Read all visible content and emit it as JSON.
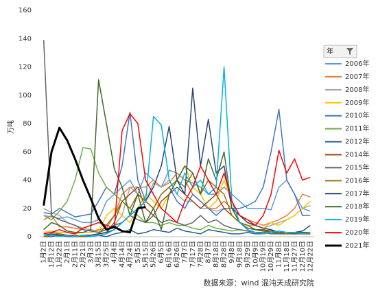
{
  "chart_data": {
    "type": "line",
    "y_label": "万吨",
    "source": "数据来源：wind 混沌天成研究院",
    "legend_title": "年",
    "legend_position": "right",
    "ylim": [
      0,
      160
    ],
    "yticks": [
      0,
      20,
      40,
      60,
      80,
      100,
      120,
      140,
      160
    ],
    "grid": false,
    "categories": [
      "1月2日",
      "1月12日",
      "1月22日",
      "2月1日",
      "2月11日",
      "2月21日",
      "3月3日",
      "3月15日",
      "3月25日",
      "4月4日",
      "4月14日",
      "4月24日",
      "5月5日",
      "5月15日",
      "5月26日",
      "6月5日",
      "6月16日",
      "6月26日",
      "7月7日",
      "7月17日",
      "7月28日",
      "8月7日",
      "8月18日",
      "8月28日",
      "9月8日",
      "9月18日",
      "9月29日",
      "10月9日",
      "10月19日",
      "10月29日",
      "11月8日",
      "11月18日",
      "11月27日",
      "12月10日",
      "12月22日"
    ],
    "series": [
      {
        "name": "2006年",
        "color": "#5b9bd5",
        "values": [
          15,
          14,
          13,
          14,
          12,
          10,
          10,
          12,
          25,
          30,
          35,
          40,
          30,
          45,
          40,
          35,
          47,
          45,
          40,
          38,
          35,
          30,
          30,
          35,
          30,
          25,
          20,
          20,
          20,
          19,
          35,
          40,
          30,
          20,
          18
        ]
      },
      {
        "name": "2007年",
        "color": "#ed7d31",
        "values": [
          12,
          15,
          7,
          7,
          6,
          5,
          4,
          5,
          6,
          15,
          30,
          35,
          35,
          35,
          40,
          35,
          38,
          45,
          40,
          30,
          25,
          20,
          20,
          25,
          20,
          15,
          12,
          10,
          8,
          10,
          12,
          15,
          20,
          30,
          28
        ]
      },
      {
        "name": "2008年",
        "color": "#a5a5a5",
        "values": [
          20,
          17,
          15,
          10,
          8,
          6,
          5,
          4,
          5,
          8,
          15,
          35,
          30,
          25,
          38,
          35,
          40,
          30,
          25,
          25,
          20,
          20,
          18,
          20,
          15,
          10,
          8,
          8,
          6,
          8,
          10,
          12,
          15,
          20,
          22
        ]
      },
      {
        "name": "2009年",
        "color": "#ffc000",
        "values": [
          3,
          4,
          3,
          3,
          2,
          3,
          3,
          4,
          15,
          20,
          15,
          10,
          20,
          30,
          25,
          20,
          30,
          40,
          50,
          35,
          30,
          20,
          25,
          40,
          25,
          15,
          10,
          8,
          6,
          10,
          8,
          12,
          15,
          20,
          25
        ]
      },
      {
        "name": "2010年",
        "color": "#4472c4",
        "values": [
          17,
          16,
          20,
          17,
          14,
          15,
          16,
          25,
          35,
          30,
          50,
          88,
          40,
          25,
          20,
          30,
          35,
          25,
          20,
          30,
          25,
          20,
          15,
          20,
          20,
          20,
          22,
          25,
          35,
          60,
          90,
          40,
          30,
          15,
          15
        ]
      },
      {
        "name": "2011年",
        "color": "#70ad47",
        "values": [
          15,
          12,
          18,
          25,
          40,
          63,
          62,
          45,
          35,
          30,
          25,
          20,
          15,
          10,
          10,
          8,
          10,
          8,
          8,
          6,
          5,
          8,
          6,
          5,
          4,
          5,
          4,
          3,
          3,
          3,
          4,
          3,
          3,
          3,
          2
        ]
      },
      {
        "name": "2012年",
        "color": "#255e91",
        "values": [
          0,
          0,
          1,
          0,
          0,
          0,
          0,
          1,
          0,
          2,
          3,
          5,
          2,
          3,
          5,
          4,
          3,
          6,
          4,
          3,
          2,
          5,
          4,
          3,
          2,
          2,
          3,
          2,
          2,
          3,
          2,
          2,
          2,
          3,
          2
        ]
      },
      {
        "name": "2014年",
        "color": "#9e480e",
        "values": [
          2,
          3,
          2,
          1,
          1,
          0,
          1,
          2,
          3,
          10,
          25,
          30,
          35,
          20,
          15,
          25,
          30,
          35,
          30,
          25,
          20,
          25,
          30,
          20,
          15,
          10,
          8,
          5,
          5,
          4,
          3,
          3,
          2,
          2,
          2
        ]
      },
      {
        "name": "2015年",
        "color": "#636363",
        "values": [
          139,
          15,
          12,
          10,
          8,
          5,
          4,
          3,
          5,
          8,
          10,
          15,
          12,
          10,
          15,
          10,
          12,
          10,
          8,
          10,
          15,
          10,
          12,
          8,
          6,
          5,
          4,
          3,
          3,
          2,
          2,
          2,
          3,
          2,
          2
        ]
      },
      {
        "name": "2016年",
        "color": "#997300",
        "values": [
          0,
          1,
          2,
          1,
          0,
          0,
          1,
          2,
          8,
          15,
          25,
          20,
          30,
          25,
          20,
          30,
          35,
          40,
          35,
          45,
          30,
          40,
          35,
          30,
          15,
          10,
          8,
          5,
          4,
          3,
          3,
          2,
          2,
          2,
          2
        ]
      },
      {
        "name": "2017年",
        "color": "#264478",
        "values": [
          1,
          2,
          1,
          1,
          0,
          1,
          1,
          2,
          3,
          5,
          10,
          15,
          20,
          25,
          35,
          50,
          78,
          40,
          30,
          105,
          50,
          83,
          45,
          50,
          20,
          15,
          10,
          8,
          6,
          5,
          3,
          3,
          3,
          4,
          8
        ]
      },
      {
        "name": "2018年",
        "color": "#43682b",
        "values": [
          5,
          10,
          8,
          4,
          3,
          3,
          5,
          111,
          80,
          48,
          35,
          15,
          30,
          10,
          20,
          5,
          30,
          40,
          50,
          45,
          30,
          55,
          40,
          60,
          20,
          10,
          6,
          5,
          4,
          4,
          3,
          3,
          2,
          3,
          3
        ]
      },
      {
        "name": "2019年",
        "color": "#00b0f0",
        "values": [
          1,
          1,
          0,
          1,
          0,
          1,
          0,
          1,
          2,
          5,
          10,
          15,
          20,
          25,
          85,
          79,
          40,
          30,
          45,
          35,
          40,
          30,
          35,
          120,
          25,
          10,
          5,
          3,
          2,
          3,
          4,
          3,
          3,
          2,
          3
        ]
      },
      {
        "name": "2020年",
        "color": "#ff0000",
        "values": [
          2,
          3,
          5,
          3,
          2,
          6,
          8,
          10,
          8,
          6,
          75,
          87,
          80,
          40,
          30,
          20,
          15,
          10,
          25,
          35,
          50,
          40,
          30,
          45,
          25,
          15,
          12,
          8,
          15,
          30,
          61,
          45,
          55,
          40,
          42
        ]
      },
      {
        "name": "2021年",
        "color": "#000000",
        "width": 3,
        "values": [
          22,
          60,
          77,
          68,
          55,
          40,
          27,
          13,
          5,
          7,
          4,
          3,
          20,
          21,
          null,
          null,
          null,
          null,
          null,
          null,
          null,
          null,
          null,
          null,
          null,
          null,
          null,
          null,
          null,
          null,
          null,
          null,
          null,
          null,
          null
        ]
      }
    ]
  }
}
